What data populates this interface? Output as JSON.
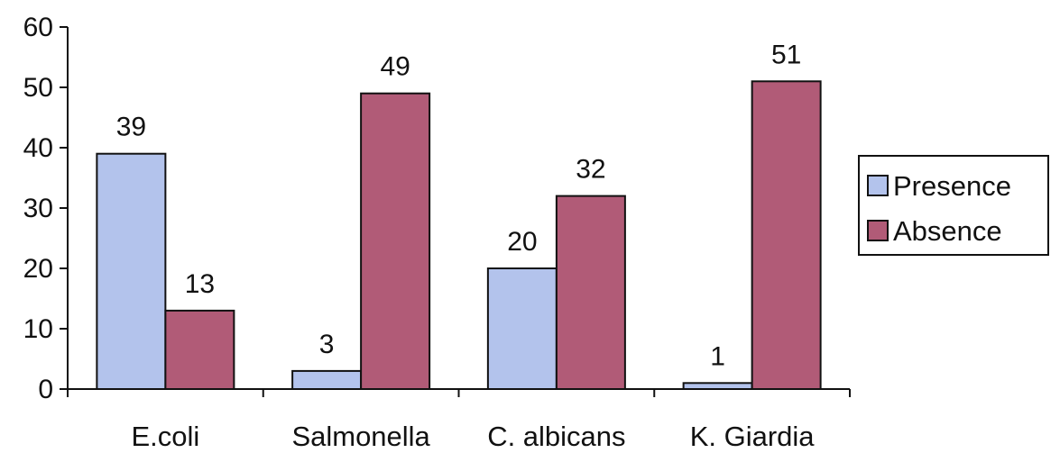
{
  "chart_data": {
    "type": "bar",
    "categories": [
      "E.coli",
      "Salmonella",
      "C. albicans",
      "K. Giardia"
    ],
    "series": [
      {
        "name": "Presence",
        "values": [
          39,
          3,
          20,
          1
        ],
        "color": "#b3c3ec"
      },
      {
        "name": "Absence",
        "values": [
          13,
          49,
          32,
          51
        ],
        "color": "#b15b77"
      }
    ],
    "ylim": [
      0,
      60
    ],
    "yticks": [
      0,
      10,
      20,
      30,
      40,
      50,
      60
    ],
    "grid": false,
    "legend_position": "right",
    "title": "",
    "xlabel": "",
    "ylabel": ""
  }
}
